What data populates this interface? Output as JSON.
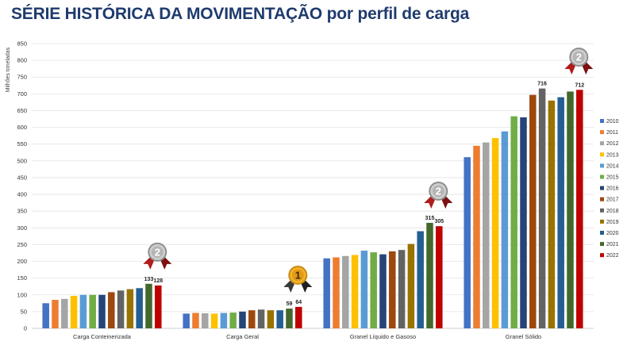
{
  "page": {
    "title": "SÉRIE HISTÓRICA DA MOVIMENTAÇÃO por perfil de carga"
  },
  "chart_data": {
    "type": "bar",
    "title": "SÉRIE HISTÓRICA DA MOVIMENTAÇÃO por perfil de carga",
    "xlabel": "",
    "ylabel": "Milhões toneladas",
    "ylim": [
      0,
      850
    ],
    "yticks": [
      0,
      50,
      100,
      150,
      200,
      250,
      300,
      350,
      400,
      450,
      500,
      550,
      600,
      650,
      700,
      750,
      800,
      850
    ],
    "grid": true,
    "legend_position": "right",
    "categories": [
      "Carga Conteinerizada",
      "Carga Geral",
      "Granel Líquido e Gasoso",
      "Granel Sólido"
    ],
    "series": [
      {
        "name": "2010",
        "color": "#4472c4",
        "values": [
          75,
          44,
          209,
          511
        ]
      },
      {
        "name": "2011",
        "color": "#ed7d31",
        "values": [
          85,
          46,
          212,
          545
        ]
      },
      {
        "name": "2012",
        "color": "#a5a5a5",
        "values": [
          88,
          45,
          216,
          555
        ]
      },
      {
        "name": "2013",
        "color": "#ffc000",
        "values": [
          97,
          44,
          219,
          568
        ]
      },
      {
        "name": "2014",
        "color": "#5b9bd5",
        "values": [
          100,
          46,
          232,
          588
        ]
      },
      {
        "name": "2015",
        "color": "#70ad47",
        "values": [
          100,
          47,
          227,
          633
        ]
      },
      {
        "name": "2016",
        "color": "#264478",
        "values": [
          100,
          50,
          221,
          630
        ]
      },
      {
        "name": "2017",
        "color": "#9e480e",
        "values": [
          108,
          54,
          230,
          697
        ]
      },
      {
        "name": "2018",
        "color": "#636363",
        "values": [
          113,
          56,
          234,
          716
        ]
      },
      {
        "name": "2019",
        "color": "#997300",
        "values": [
          117,
          54,
          252,
          680
        ]
      },
      {
        "name": "2020",
        "color": "#255e91",
        "values": [
          120,
          54,
          290,
          690
        ]
      },
      {
        "name": "2021",
        "color": "#43682b",
        "values": [
          133,
          59,
          315,
          707
        ]
      },
      {
        "name": "2022",
        "color": "#c00000",
        "values": [
          128,
          64,
          305,
          712
        ]
      }
    ],
    "data_labels": [
      {
        "category": 0,
        "series": 11,
        "text": "133"
      },
      {
        "category": 0,
        "series": 12,
        "text": "128"
      },
      {
        "category": 1,
        "series": 11,
        "text": "59"
      },
      {
        "category": 1,
        "series": 12,
        "text": "64"
      },
      {
        "category": 2,
        "series": 11,
        "text": "315"
      },
      {
        "category": 2,
        "series": 12,
        "text": "305"
      },
      {
        "category": 3,
        "series": 8,
        "text": "716"
      },
      {
        "category": 3,
        "series": 12,
        "text": "712"
      }
    ],
    "medals": [
      {
        "category": 0,
        "rank": "2",
        "kind": "silver-medal-icon"
      },
      {
        "category": 1,
        "rank": "1",
        "kind": "gold-medal-icon"
      },
      {
        "category": 2,
        "rank": "2",
        "kind": "silver-medal-icon"
      },
      {
        "category": 3,
        "rank": "2",
        "kind": "silver-medal-icon"
      }
    ]
  }
}
